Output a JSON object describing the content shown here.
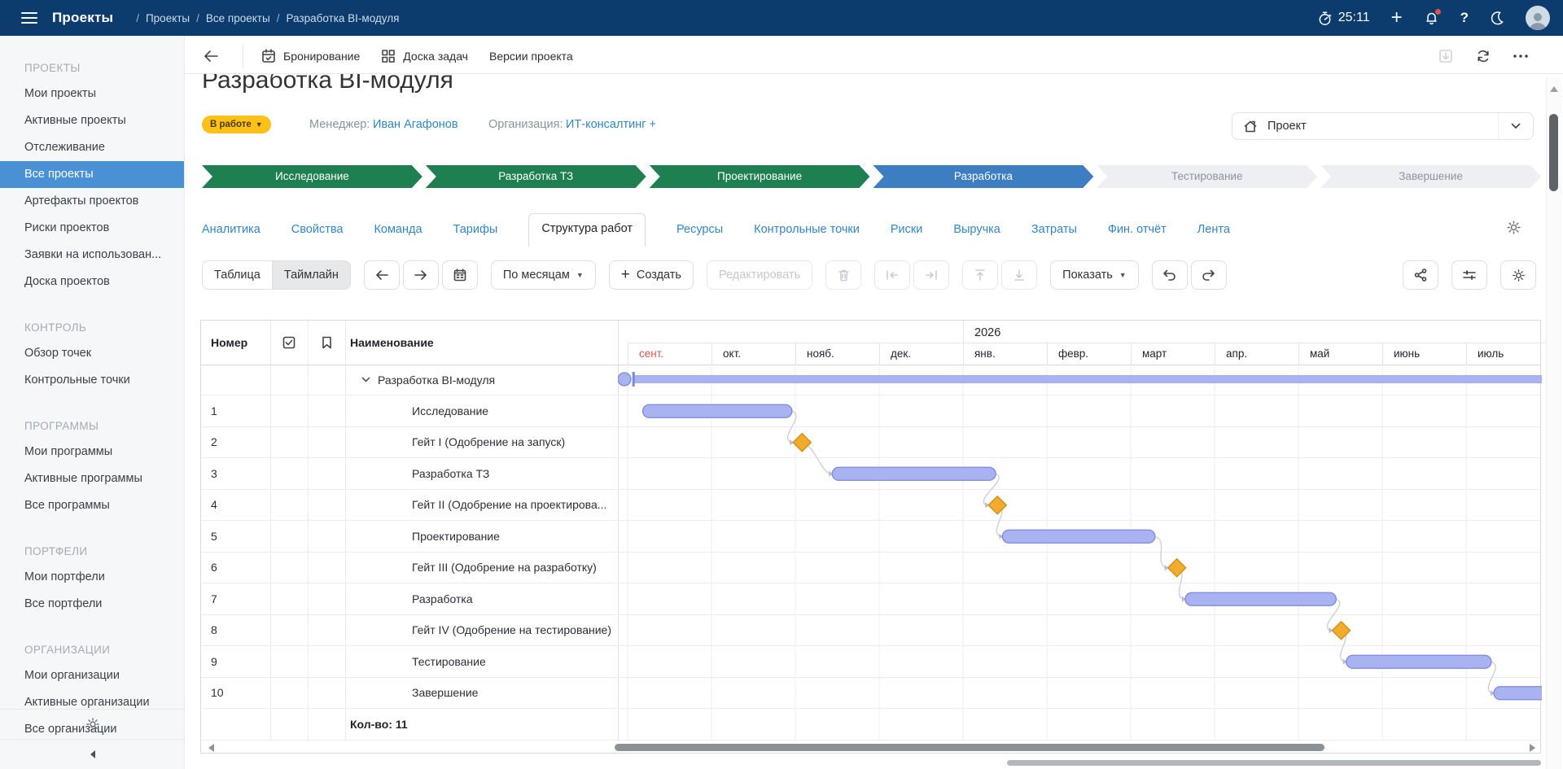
{
  "colors": {
    "topbar": "#0c3b6d",
    "accent_blue": "#3385c6",
    "sidebar_selected": "#4a90d5",
    "stage_green": "#1e8050",
    "stage_blue": "#3d7dc2",
    "stage_inactive_bg": "#edeff2",
    "badge_yellow": "#ffc117",
    "bar_fill": "#a9b3f2",
    "bar_border": "#7c88dd",
    "milestone_fill": "#f3ab2e",
    "milestone_border": "#d1921c",
    "current_month_red": "#e05252"
  },
  "topbar": {
    "app_title": "Проекты",
    "breadcrumbs": [
      "Проекты",
      "Все проекты",
      "Разработка BI-модуля"
    ],
    "timer": "25:11"
  },
  "sidebar": {
    "selected_item": "Все проекты",
    "sections": [
      {
        "title": "ПРОЕКТЫ",
        "items": [
          "Мои проекты",
          "Активные проекты",
          "Отслеживание",
          "Все проекты",
          "Артефакты проектов",
          "Риски проектов",
          "Заявки на использован...",
          "Доска проектов"
        ]
      },
      {
        "title": "КОНТРОЛЬ",
        "items": [
          "Обзор точек",
          "Контрольные точки"
        ]
      },
      {
        "title": "ПРОГРАММЫ",
        "items": [
          "Мои программы",
          "Активные программы",
          "Все программы"
        ]
      },
      {
        "title": "ПОРТФЕЛИ",
        "items": [
          "Мои портфели",
          "Все портфели"
        ]
      },
      {
        "title": "ОРГАНИЗАЦИИ",
        "items": [
          "Мои организации",
          "Активные организации",
          "Все организации"
        ]
      }
    ]
  },
  "project_header": {
    "actions": [
      {
        "icon": "calendar-check-icon",
        "label": "Бронирование"
      },
      {
        "icon": "board-icon",
        "label": "Доска задач"
      },
      {
        "icon": "",
        "label": "Версии проекта"
      }
    ],
    "title": "Разработка BI-модуля",
    "status_badge": "В работе",
    "manager_label": "Менеджер:",
    "manager_name": "Иван Агафонов",
    "org_label": "Организация:",
    "org_name": "ИТ-консалтинг +",
    "scope_value": "Проект"
  },
  "stages": [
    {
      "label": "Исследование",
      "state": "done"
    },
    {
      "label": "Разработка ТЗ",
      "state": "done"
    },
    {
      "label": "Проектирование",
      "state": "done"
    },
    {
      "label": "Разработка",
      "state": "current"
    },
    {
      "label": "Тестирование",
      "state": "pending"
    },
    {
      "label": "Завершение",
      "state": "pending"
    }
  ],
  "tabs": {
    "active": "Структура работ",
    "items": [
      "Аналитика",
      "Свойства",
      "Команда",
      "Тарифы",
      "Структура работ",
      "Ресурсы",
      "Контрольные точки",
      "Риски",
      "Выручка",
      "Затраты",
      "Фин. отчёт",
      "Лента"
    ]
  },
  "wbs_toolbar": {
    "view_table": "Таблица",
    "view_timeline": "Таймлайн",
    "active_view": "Таймлайн",
    "scale_select": "По месяцам",
    "create_label": "Создать",
    "edit_label": "Редактировать",
    "show_label": "Показать"
  },
  "table": {
    "col_number": "Номер",
    "col_name": "Наименование",
    "footer_count": "Кол-во: 11"
  },
  "chart_data": {
    "type": "gantt",
    "year_label": "2026",
    "months": [
      "сент.",
      "окт.",
      "нояб.",
      "дек.",
      "янв.",
      "февр.",
      "март",
      "апр.",
      "май",
      "июнь",
      "июль"
    ],
    "current_month": "сент.",
    "year_start_month": "янв.",
    "rows": [
      {
        "num": "",
        "name": "Разработка BI-модуля",
        "kind": "summary",
        "start": 0.07,
        "end": 11.5
      },
      {
        "num": "1",
        "name": "Исследование",
        "kind": "task",
        "start": 0.18,
        "end": 1.96
      },
      {
        "num": "2",
        "name": "Гейт I (Одобрение на запуск)",
        "kind": "milestone",
        "at": 2.08
      },
      {
        "num": "3",
        "name": "Разработка ТЗ",
        "kind": "task",
        "start": 2.44,
        "end": 4.39
      },
      {
        "num": "4",
        "name": "Гейт II (Одобрение на проектирова...",
        "kind": "milestone",
        "at": 4.41
      },
      {
        "num": "5",
        "name": "Проектирование",
        "kind": "task",
        "start": 4.47,
        "end": 6.29
      },
      {
        "num": "6",
        "name": "Гейт III (Одобрение на разработку)",
        "kind": "milestone",
        "at": 6.55
      },
      {
        "num": "7",
        "name": "Разработка",
        "kind": "task",
        "start": 6.65,
        "end": 8.45
      },
      {
        "num": "8",
        "name": "Гейт IV (Одобрение на тестирование)",
        "kind": "milestone",
        "at": 8.51
      },
      {
        "num": "9",
        "name": "Тестирование",
        "kind": "task",
        "start": 8.57,
        "end": 10.3
      },
      {
        "num": "10",
        "name": "Завершение",
        "kind": "task",
        "start": 10.33,
        "end": 11.2
      }
    ]
  }
}
